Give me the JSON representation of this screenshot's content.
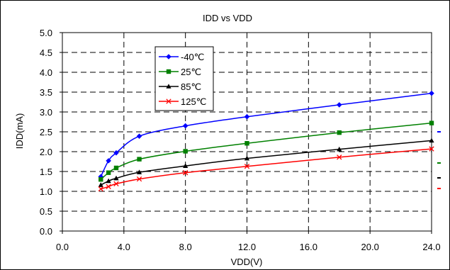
{
  "chart_data": {
    "type": "line",
    "title": "IDD vs VDD",
    "xlabel": "VDD(V)",
    "ylabel": "IDD(mA)",
    "xlim": [
      0,
      24
    ],
    "ylim": [
      0,
      5
    ],
    "x_ticks": [
      "0.0",
      "4.0",
      "8.0",
      "12.0",
      "16.0",
      "20.0",
      "24.0"
    ],
    "y_ticks": [
      "0.0",
      "0.5",
      "1.0",
      "1.5",
      "2.0",
      "2.5",
      "3.0",
      "3.5",
      "4.0",
      "4.5",
      "5.0"
    ],
    "grid": true,
    "legend_position": "top-left",
    "series": [
      {
        "name": "-40℃",
        "color": "#0000ff",
        "marker": "diamond",
        "x": [
          2.5,
          3.0,
          3.5,
          5.0,
          8.0,
          12.0,
          18.0,
          24.0
        ],
        "y": [
          1.37,
          1.77,
          1.97,
          2.39,
          2.65,
          2.88,
          3.18,
          3.47
        ]
      },
      {
        "name": "25℃",
        "color": "#008000",
        "marker": "square",
        "x": [
          2.5,
          3.0,
          3.5,
          5.0,
          8.0,
          12.0,
          18.0,
          24.0
        ],
        "y": [
          1.3,
          1.47,
          1.59,
          1.81,
          2.01,
          2.21,
          2.48,
          2.72
        ]
      },
      {
        "name": "85℃",
        "color": "#000000",
        "marker": "triangle",
        "x": [
          2.5,
          3.0,
          3.5,
          5.0,
          8.0,
          12.0,
          18.0,
          24.0
        ],
        "y": [
          1.16,
          1.26,
          1.33,
          1.48,
          1.64,
          1.83,
          2.06,
          2.28
        ]
      },
      {
        "name": "125℃",
        "color": "#ff0000",
        "marker": "x",
        "x": [
          2.5,
          3.0,
          3.5,
          5.0,
          8.0,
          12.0,
          18.0,
          24.0
        ],
        "y": [
          1.06,
          1.12,
          1.19,
          1.31,
          1.47,
          1.63,
          1.86,
          2.07
        ]
      }
    ]
  }
}
